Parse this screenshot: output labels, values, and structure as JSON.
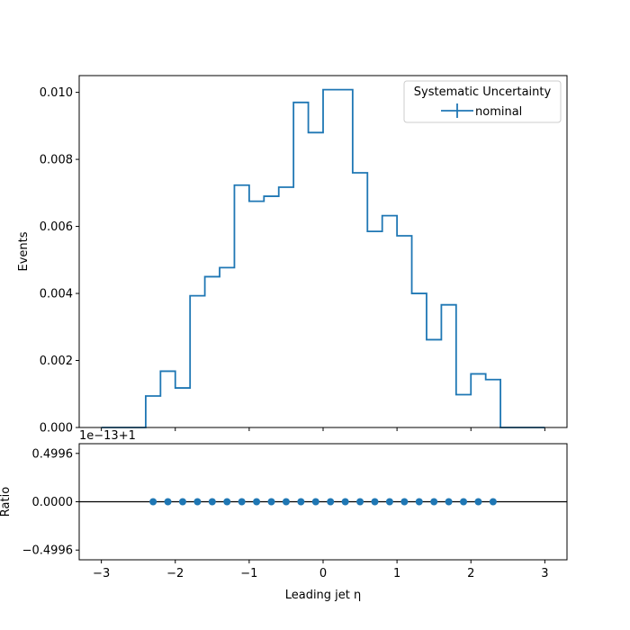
{
  "chart_data": {
    "type": "step",
    "xlabel": "Leading jet  η",
    "main": {
      "ylabel": "Events",
      "ylim": [
        0,
        0.0105
      ],
      "yticks": [
        0.0,
        0.002,
        0.004,
        0.006,
        0.008,
        0.01
      ],
      "ytick_labels": [
        "0.000",
        "0.002",
        "0.004",
        "0.006",
        "0.008",
        "0.010"
      ],
      "series": [
        {
          "name": "nominal",
          "color": "#1f77b4",
          "bin_edges": [
            -3.0,
            -2.8,
            -2.6,
            -2.4,
            -2.2,
            -2.0,
            -1.8,
            -1.6,
            -1.4,
            -1.2,
            -1.0,
            -0.8,
            -0.6,
            -0.4,
            -0.2,
            0.0,
            0.2,
            0.4,
            0.6,
            0.8,
            1.0,
            1.2,
            1.4,
            1.6,
            1.8,
            2.0,
            2.2,
            2.4,
            2.6,
            2.8,
            3.0
          ],
          "values": [
            0.0,
            0.0,
            0.0,
            0.00094,
            0.00168,
            0.00118,
            0.00393,
            0.0045,
            0.00477,
            0.00723,
            0.00675,
            0.0069,
            0.00717,
            0.0097,
            0.0088,
            0.01008,
            0.01008,
            0.0076,
            0.00585,
            0.00632,
            0.00572,
            0.004,
            0.00262,
            0.00366,
            0.00098,
            0.0016,
            0.00143,
            0.0,
            0.0,
            0.0
          ]
        }
      ],
      "legend": {
        "title": "Systematic Uncertainty",
        "entries": [
          "nominal"
        ],
        "placement": "upper right"
      }
    },
    "ratio": {
      "ylabel": "Ratio",
      "offset_text": "1e−13+1",
      "ylim": [
        -0.6,
        0.6
      ],
      "yticks": [
        -0.4996,
        0.0,
        0.4996
      ],
      "ytick_labels": [
        "−0.4996",
        "0.0000",
        "0.4996"
      ],
      "reference_line": 0.0,
      "points": {
        "color": "#1f77b4",
        "x": [
          -2.3,
          -2.1,
          -1.9,
          -1.7,
          -1.5,
          -1.3,
          -1.1,
          -0.9,
          -0.7,
          -0.5,
          -0.3,
          -0.1,
          0.1,
          0.3,
          0.5,
          0.7,
          0.9,
          1.1,
          1.3,
          1.5,
          1.7,
          1.9,
          2.1,
          2.3
        ],
        "y": [
          0,
          0,
          0,
          0,
          0,
          0,
          0,
          0,
          0,
          0,
          0,
          0,
          0,
          0,
          0,
          0,
          0,
          0,
          0,
          0,
          0,
          0,
          0,
          0
        ]
      }
    },
    "xlim": [
      -3.3,
      3.3
    ],
    "xticks": [
      -3,
      -2,
      -1,
      0,
      1,
      2,
      3
    ],
    "xtick_labels": [
      "−3",
      "−2",
      "−1",
      "0",
      "1",
      "2",
      "3"
    ]
  }
}
